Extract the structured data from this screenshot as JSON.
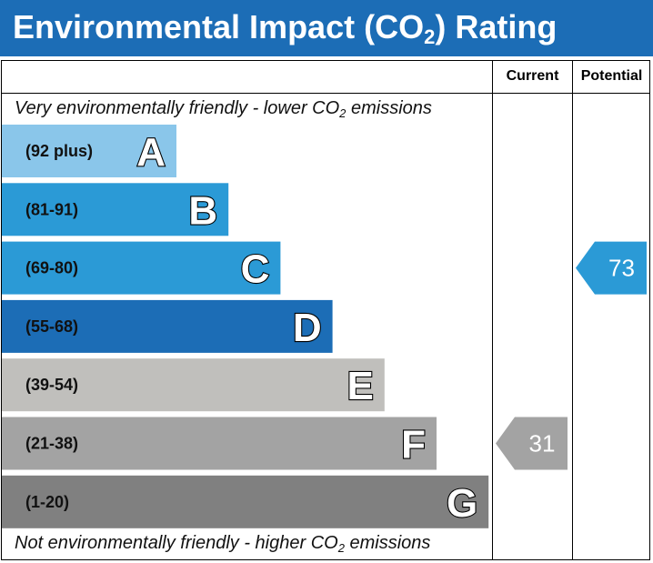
{
  "header": {
    "title_prefix": "Environmental Impact (CO",
    "title_sub": "2",
    "title_suffix": ") Rating"
  },
  "columns": {
    "current": "Current",
    "potential": "Potential"
  },
  "captions": {
    "top_prefix": "Very environmentally friendly - lower CO",
    "top_sub": "2",
    "top_suffix": " emissions",
    "bottom_prefix": "Not environmentally friendly - higher CO",
    "bottom_sub": "2",
    "bottom_suffix": " emissions"
  },
  "chart_data": {
    "type": "bar",
    "bands": [
      {
        "letter": "A",
        "range": "(92 plus)",
        "color": "#8ac6ea"
      },
      {
        "letter": "B",
        "range": "(81-91)",
        "color": "#2b9ad6"
      },
      {
        "letter": "C",
        "range": "(69-80)",
        "color": "#2b9ad6"
      },
      {
        "letter": "D",
        "range": "(55-68)",
        "color": "#1c6db6"
      },
      {
        "letter": "E",
        "range": "(39-54)",
        "color": "#c0bfbc"
      },
      {
        "letter": "F",
        "range": "(21-38)",
        "color": "#a3a3a3"
      },
      {
        "letter": "G",
        "range": "(1-20)",
        "color": "#808080"
      }
    ],
    "current": {
      "value": 31,
      "band": "F",
      "color": "#a3a3a3"
    },
    "potential": {
      "value": 73,
      "band": "C",
      "color": "#2b9ad6"
    }
  }
}
